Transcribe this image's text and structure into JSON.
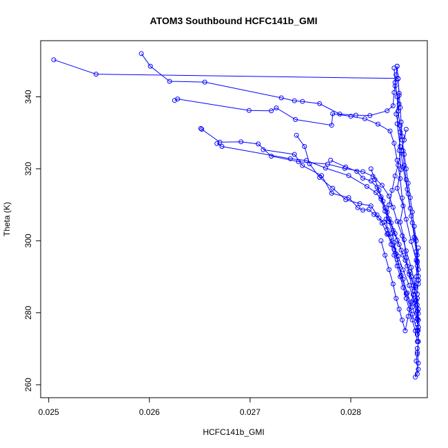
{
  "chart_data": {
    "type": "scatter",
    "title": "ATOM3 Southbound HCFC141b_GMI",
    "xlabel": "HCFC141b_GMI",
    "ylabel": "Theta (K)",
    "xlim": [
      0.02492,
      0.02876
    ],
    "ylim": [
      256.4,
      355.6
    ],
    "xticks": [
      0.025,
      0.026,
      0.027,
      0.028
    ],
    "xtick_labels": [
      "0.025",
      "0.026",
      "0.027",
      "0.028"
    ],
    "yticks": [
      260,
      280,
      300,
      320,
      340
    ],
    "ytick_labels": [
      "260",
      "280",
      "300",
      "320",
      "340"
    ],
    "grid": false,
    "marker": "open-circle",
    "connected": true,
    "series": [
      {
        "color": "#0000ff",
        "x": [
          0.02505,
          0.02547,
          0.02847,
          0.02848,
          0.02845,
          0.02849,
          0.02848,
          0.0285,
          0.02846,
          0.02852,
          0.02849,
          0.02853,
          0.02855,
          0.02858,
          0.02862,
          0.02866,
          0.02867,
          0.02867,
          0.02866,
          0.02865,
          0.02867,
          0.02866,
          0.02864,
          0.02867,
          0.02866
        ],
        "y": [
          350.3,
          346.3,
          345.1,
          340.4,
          335.2,
          330.2,
          325.1,
          319.8,
          314.6,
          309.7,
          305.2,
          300.3,
          295.3,
          290.7,
          285.0,
          280.4,
          276.0,
          272.0,
          268.5,
          266.6,
          264.3,
          263.0,
          262.1,
          266.0,
          270.1
        ]
      },
      {
        "color": "#0000ff",
        "x": [
          0.02592,
          0.02601,
          0.0262,
          0.02655,
          0.02731,
          0.02744,
          0.02752,
          0.02769,
          0.02789,
          0.02805,
          0.02819,
          0.02836,
          0.02842,
          0.02843,
          0.02845,
          0.02846,
          0.02844,
          0.02848,
          0.02846,
          0.02849,
          0.02852,
          0.02856,
          0.0286,
          0.02864,
          0.02866,
          0.02867,
          0.02866
        ],
        "y": [
          352.0,
          348.5,
          344.3,
          344.1,
          339.7,
          338.9,
          338.7,
          338.1,
          335.2,
          334.9,
          334.8,
          336.1,
          337.5,
          341.2,
          346.1,
          348.5,
          343.0,
          338.0,
          332.5,
          326.2,
          320.4,
          314.3,
          306.9,
          300.6,
          294.4,
          289.1,
          285.2
        ]
      },
      {
        "color": "#0000ff",
        "x": [
          0.02625,
          0.02628,
          0.02699,
          0.02721,
          0.02726,
          0.02745,
          0.02781,
          0.02782,
          0.028,
          0.02814,
          0.02827,
          0.02839,
          0.02843,
          0.02846,
          0.02849,
          0.02851,
          0.02855,
          0.0286,
          0.02865,
          0.02867
        ],
        "y": [
          339.0,
          339.4,
          336.2,
          336.1,
          336.9,
          333.7,
          332.1,
          335.3,
          334.6,
          333.9,
          332.4,
          330.5,
          327.1,
          322.4,
          317.3,
          311.9,
          306.0,
          299.8,
          294.6,
          290.2
        ]
      },
      {
        "color": "#0000ff",
        "x": [
          0.02651,
          0.02652,
          0.0267,
          0.02691,
          0.02708,
          0.02721,
          0.02748,
          0.02777,
          0.02794,
          0.02812,
          0.02822,
          0.02831,
          0.02838,
          0.02842,
          0.02846,
          0.02851,
          0.02855,
          0.0286,
          0.02864,
          0.02866,
          0.02867,
          0.02866
        ],
        "y": [
          331.2,
          331.0,
          327.4,
          327.5,
          326.9,
          323.5,
          322.0,
          321.3,
          320.1,
          319.2,
          317.9,
          315.4,
          312.4,
          309.3,
          305.4,
          301.4,
          297.2,
          292.6,
          287.5,
          282.2,
          278.0,
          274.0
        ]
      },
      {
        "color": "#0000ff",
        "x": [
          0.02667,
          0.02672,
          0.0274,
          0.02756,
          0.02775,
          0.02798,
          0.02816,
          0.02825,
          0.0283,
          0.02834,
          0.02838,
          0.02841,
          0.02843,
          0.02845,
          0.02848,
          0.02852,
          0.02856,
          0.02861,
          0.02866,
          0.02867
        ],
        "y": [
          327.0,
          326.2,
          322.8,
          322.3,
          320.2,
          318.1,
          315.1,
          313.4,
          311.6,
          308.2,
          305.3,
          302.2,
          299.5,
          296.4,
          293.0,
          289.3,
          285.5,
          281.5,
          278.2,
          276.0
        ]
      },
      {
        "color": "#0000ff",
        "x": [
          0.02713,
          0.02744,
          0.02752,
          0.02771,
          0.02781,
          0.02798,
          0.02807,
          0.02812,
          0.02818,
          0.02823,
          0.02828,
          0.02833,
          0.02836,
          0.0284,
          0.02843,
          0.02846,
          0.0285,
          0.02855,
          0.02861,
          0.02866
        ],
        "y": [
          325.3,
          324.0,
          320.9,
          318.1,
          313.2,
          312.0,
          309.2,
          308.5,
          308.7,
          307.3,
          306.3,
          305.2,
          303.1,
          300.9,
          297.6,
          294.8,
          290.4,
          285.3,
          279.6,
          275.0
        ]
      },
      {
        "color": "#0000ff",
        "x": [
          0.02746,
          0.02754,
          0.02759,
          0.02769,
          0.02782,
          0.02795,
          0.02809,
          0.0282,
          0.02826,
          0.02831,
          0.02836,
          0.02842,
          0.02847,
          0.02852,
          0.02858,
          0.02863,
          0.02866,
          0.02867
        ],
        "y": [
          329.3,
          326.2,
          321.4,
          317.6,
          314.6,
          311.4,
          310.3,
          309.7,
          307.2,
          304.9,
          301.8,
          298.9,
          295.7,
          291.9,
          287.6,
          282.8,
          278.4,
          275.1
        ]
      },
      {
        "color": "#0000ff",
        "x": [
          0.0278,
          0.02795,
          0.02806,
          0.02812,
          0.0282,
          0.02826,
          0.0283,
          0.02834,
          0.02838,
          0.02842,
          0.02846,
          0.0285,
          0.02854,
          0.02858,
          0.02862,
          0.02865,
          0.02867,
          0.02866
        ],
        "y": [
          322.4,
          320.5,
          319.3,
          317.4,
          316.6,
          314.9,
          312.2,
          309.2,
          306.1,
          302.9,
          300.2,
          297.4,
          294.6,
          291.4,
          287.6,
          283.4,
          279.8,
          276.9
        ]
      },
      {
        "color": "#0000ff",
        "x": [
          0.0282,
          0.02824,
          0.02828,
          0.02832,
          0.02836,
          0.0284,
          0.02844,
          0.02848,
          0.02852,
          0.02856,
          0.0286,
          0.02864,
          0.02866,
          0.02867,
          0.02867,
          0.02866,
          0.02867,
          0.02866
        ],
        "y": [
          320.0,
          317.0,
          314.0,
          311.0,
          308.0,
          305.0,
          302.0,
          299.0,
          296.0,
          293.0,
          290.0,
          287.0,
          284.0,
          281.0,
          278.0,
          275.0,
          272.0,
          269.0
        ]
      },
      {
        "color": "#0000ff",
        "x": [
          0.02843,
          0.02844,
          0.02846,
          0.02847,
          0.02849,
          0.02851,
          0.02853,
          0.02855,
          0.02857,
          0.02859,
          0.02861,
          0.02863,
          0.02865,
          0.02866,
          0.02867,
          0.02867
        ],
        "y": [
          348.0,
          344.0,
          340.0,
          336.0,
          332.0,
          328.0,
          324.0,
          320.0,
          316.0,
          312.0,
          308.0,
          304.0,
          300.0,
          296.0,
          292.0,
          288.0
        ]
      },
      {
        "color": "#0000ff",
        "x": [
          0.02846,
          0.02847,
          0.02848,
          0.02849,
          0.0285,
          0.02851,
          0.02852,
          0.02853,
          0.02855,
          0.02857,
          0.02859,
          0.02861,
          0.02863,
          0.02865,
          0.02866,
          0.02867
        ],
        "y": [
          348.5,
          345.0,
          341.0,
          337.0,
          333.0,
          329.0,
          325.0,
          321.0,
          317.0,
          313.0,
          309.0,
          305.0,
          301.0,
          297.0,
          293.0,
          289.0
        ]
      },
      {
        "color": "#0000ff",
        "x": [
          0.02855,
          0.02853,
          0.0285,
          0.02847,
          0.02844,
          0.02841,
          0.02838,
          0.02835,
          0.02837,
          0.0284,
          0.02843,
          0.02846,
          0.02849,
          0.02852,
          0.02855,
          0.02858,
          0.02861,
          0.02864,
          0.02866
        ],
        "y": [
          331.0,
          328.0,
          325.0,
          321.0,
          318.0,
          314.0,
          310.0,
          306.0,
          302.0,
          299.0,
          296.0,
          293.0,
          290.0,
          287.0,
          284.0,
          281.0,
          278.0,
          275.0,
          272.0
        ]
      },
      {
        "color": "#0000ff",
        "x": [
          0.0283,
          0.02834,
          0.02838,
          0.02842,
          0.02845,
          0.02848,
          0.02851,
          0.02854,
          0.02857,
          0.0286,
          0.02863,
          0.02865,
          0.02866,
          0.02867
        ],
        "y": [
          300.0,
          296.0,
          292.0,
          288.0,
          284.0,
          281.0,
          278.0,
          275.0,
          279.0,
          283.0,
          286.0,
          290.0,
          294.0,
          298.0
        ]
      }
    ]
  }
}
